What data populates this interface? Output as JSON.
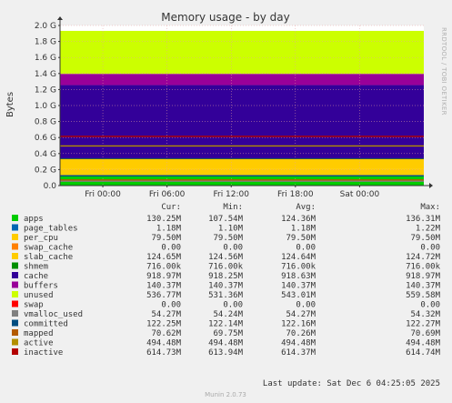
{
  "chart_data": {
    "type": "area",
    "title": "Memory usage - by day",
    "ylabel": "Bytes",
    "watermark": "RRDTOOL / TOBI OETIKER",
    "ylim": [
      0,
      2000000000
    ],
    "y_ticks": [
      "0.0",
      "0.2 G",
      "0.4 G",
      "0.6 G",
      "0.8 G",
      "1.0 G",
      "1.2 G",
      "1.4 G",
      "1.6 G",
      "1.8 G",
      "2.0 G"
    ],
    "x_ticks": [
      "Fri 00:00",
      "Fri 06:00",
      "Fri 12:00",
      "Fri 18:00",
      "Sat 00:00"
    ],
    "x_range_hours": [
      -4,
      30
    ],
    "columns": [
      "Cur:",
      "Min:",
      "Avg:",
      "Max:"
    ],
    "series": [
      {
        "name": "apps",
        "color": "#00cc00",
        "kind": "area",
        "value": 130250000,
        "stats": [
          "130.25M",
          "107.54M",
          "124.36M",
          "136.31M"
        ]
      },
      {
        "name": "page_tables",
        "color": "#0066b3",
        "kind": "area",
        "value": 1180000,
        "stats": [
          "1.18M",
          "1.10M",
          "1.18M",
          "1.22M"
        ]
      },
      {
        "name": "per_cpu",
        "color": "#ffcc00",
        "kind": "area",
        "value": 79500000,
        "stats": [
          "79.50M",
          "79.50M",
          "79.50M",
          "79.50M"
        ]
      },
      {
        "name": "swap_cache",
        "color": "#ff8000",
        "kind": "area",
        "value": 0,
        "stats": [
          "0.00",
          "0.00",
          "0.00",
          "0.00"
        ]
      },
      {
        "name": "slab_cache",
        "color": "#ffcc00",
        "kind": "area",
        "value": 124650000,
        "stats": [
          "124.65M",
          "124.56M",
          "124.64M",
          "124.72M"
        ]
      },
      {
        "name": "shmem",
        "color": "#008f00",
        "kind": "area",
        "value": 716000,
        "stats": [
          "716.00k",
          "716.00k",
          "716.00k",
          "716.00k"
        ]
      },
      {
        "name": "cache",
        "color": "#330099",
        "kind": "area",
        "value": 918970000,
        "stats": [
          "918.97M",
          "918.25M",
          "918.63M",
          "918.97M"
        ]
      },
      {
        "name": "buffers",
        "color": "#990099",
        "kind": "area",
        "value": 140370000,
        "stats": [
          "140.37M",
          "140.37M",
          "140.37M",
          "140.37M"
        ]
      },
      {
        "name": "unused",
        "color": "#ccff00",
        "kind": "area",
        "value": 536770000,
        "stats": [
          "536.77M",
          "531.36M",
          "543.01M",
          "559.58M"
        ]
      },
      {
        "name": "swap",
        "color": "#ff0000",
        "kind": "area",
        "value": 0,
        "stats": [
          "0.00",
          "0.00",
          "0.00",
          "0.00"
        ]
      },
      {
        "name": "vmalloc_used",
        "color": "#808080",
        "kind": "line",
        "value": 54270000,
        "stats": [
          "54.27M",
          "54.24M",
          "54.27M",
          "54.32M"
        ]
      },
      {
        "name": "committed",
        "color": "#004d80",
        "kind": "line",
        "value": 122250000,
        "stats": [
          "122.25M",
          "122.14M",
          "122.16M",
          "122.27M"
        ]
      },
      {
        "name": "mapped",
        "color": "#b35a00",
        "kind": "line",
        "value": 70620000,
        "stats": [
          "70.62M",
          "69.75M",
          "70.26M",
          "70.69M"
        ]
      },
      {
        "name": "active",
        "color": "#b38f00",
        "kind": "line",
        "value": 494480000,
        "stats": [
          "494.48M",
          "494.48M",
          "494.48M",
          "494.48M"
        ]
      },
      {
        "name": "inactive",
        "color": "#b30000",
        "kind": "line",
        "value": 614730000,
        "stats": [
          "614.73M",
          "613.94M",
          "614.37M",
          "614.74M"
        ]
      }
    ],
    "last_update": "Last update: Sat Dec  6 04:25:05 2025",
    "footer": "Munin 2.0.73"
  }
}
